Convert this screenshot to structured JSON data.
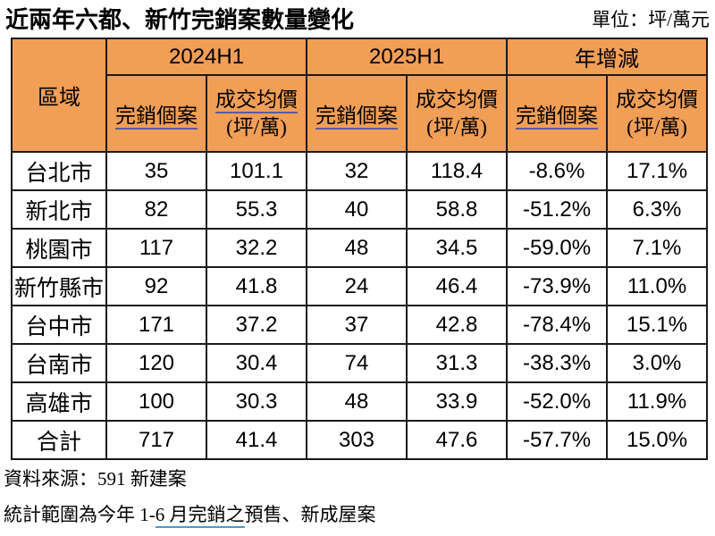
{
  "title": "近兩年六都、新竹完銷案數量變化",
  "unit_label": "單位：坪/萬元",
  "colors": {
    "header_bg": "#F19E56",
    "table_border": "#1a1a1a",
    "header_underline": "#5b5b9e",
    "note_underline": "#4a9ad0",
    "text": "#000000"
  },
  "table": {
    "region_header": "區域",
    "groups": [
      {
        "label": "2024H1",
        "case_label": "完銷個案",
        "price_label": "成交均價",
        "price_unit": "(坪/萬)"
      },
      {
        "label": "2025H1",
        "case_label": "完銷個案",
        "price_label": "成交均價",
        "price_unit": "(坪/萬)"
      },
      {
        "label": "年增減",
        "case_label": "完銷個案",
        "price_label": "成交均價",
        "price_unit": "(坪/萬)"
      }
    ]
  },
  "chart_data": {
    "type": "table",
    "title": "近兩年六都、新竹完銷案數量變化",
    "unit": "坪/萬元",
    "column_groups": [
      "2024H1",
      "2025H1",
      "年增減"
    ],
    "columns": [
      "區域",
      "2024H1 完銷個案",
      "2024H1 成交均價(坪/萬)",
      "2025H1 完銷個案",
      "2025H1 成交均價(坪/萬)",
      "年增減 完銷個案",
      "年增減 成交均價(坪/萬)"
    ],
    "rows": [
      [
        "台北市",
        35,
        101.1,
        32,
        118.4,
        "-8.6%",
        "17.1%"
      ],
      [
        "新北市",
        82,
        55.3,
        40,
        58.8,
        "-51.2%",
        "6.3%"
      ],
      [
        "桃園市",
        117,
        32.2,
        48,
        34.5,
        "-59.0%",
        "7.1%"
      ],
      [
        "新竹縣市",
        92,
        41.8,
        24,
        46.4,
        "-73.9%",
        "11.0%"
      ],
      [
        "台中市",
        171,
        37.2,
        37,
        42.8,
        "-78.4%",
        "15.1%"
      ],
      [
        "台南市",
        120,
        30.4,
        74,
        31.3,
        "-38.3%",
        "3.0%"
      ],
      [
        "高雄市",
        100,
        30.3,
        48,
        33.9,
        "-52.0%",
        "11.9%"
      ],
      [
        "合計",
        717,
        41.4,
        303,
        47.6,
        "-57.7%",
        "15.0%"
      ]
    ],
    "source": "591 新建案"
  },
  "footer": {
    "source": "資料來源：591 新建案",
    "scope_prefix": "統計範圍為今年 1-",
    "scope_underlined": "6 月完銷之",
    "scope_suffix": "預售、新成屋案"
  }
}
